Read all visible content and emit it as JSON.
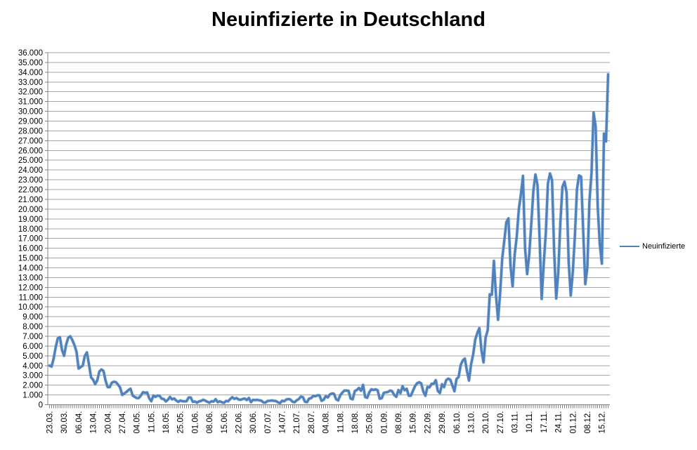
{
  "header": {
    "title": "Neuinfizierte in Deutschland"
  },
  "legend": {
    "label": "Neuinfizierte",
    "marker_color": "#4F81BD"
  },
  "chart_data": {
    "type": "line",
    "title": "Neuinfizierte in Deutschland",
    "xlabel": "",
    "ylabel": "",
    "ylim": [
      0,
      36000
    ],
    "y_tick_step": 1000,
    "y_tick_labels_top_to_bottom": [
      "36.000",
      "35.000",
      "34.000",
      "33.000",
      "32.000",
      "31.000",
      "30.000",
      "29.000",
      "28.000",
      "27.000",
      "26.000",
      "25.000",
      "24.000",
      "23.000",
      "22.000",
      "21.000",
      "20.000",
      "19.000",
      "18.000",
      "17.000",
      "16.000",
      "15.000",
      "14.000",
      "13.000",
      "12.000",
      "11.000",
      "10.000",
      "9.000",
      "8.000",
      "7.000",
      "6.000",
      "5.000",
      "4.000",
      "3.000",
      "2.000",
      "1.000",
      "0"
    ],
    "grid": "horizontal-on",
    "legend_position": "right",
    "x_tick_every": 7,
    "x_tick_labels": [
      "23.03.",
      "30.03.",
      "06.04.",
      "13.04.",
      "20.04.",
      "27.04.",
      "04.05.",
      "11.05.",
      "18.05.",
      "25.05.",
      "01.06.",
      "08.06.",
      "15.06.",
      "22.06.",
      "30.06.",
      "07.07.",
      "14.07.",
      "21.07.",
      "28.07.",
      "04.08.",
      "11.08.",
      "18.08.",
      "25.08.",
      "01.09.",
      "08.09.",
      "15.09.",
      "22.09.",
      "29.09.",
      "06.10.",
      "13.10.",
      "20.10.",
      "27.10.",
      "03.11.",
      "10.11.",
      "17.11.",
      "24.11.",
      "01.12.",
      "08.12.",
      "15.12."
    ],
    "series": [
      {
        "name": "Neuinfizierte",
        "color": "#4F81BD",
        "values": [
          4000,
          3900,
          4750,
          5900,
          6800,
          6900,
          5600,
          5000,
          6150,
          6850,
          7000,
          6600,
          6100,
          5400,
          3700,
          3850,
          4000,
          5000,
          5350,
          4100,
          2800,
          2550,
          2100,
          2500,
          3400,
          3600,
          3450,
          2450,
          1800,
          1800,
          2250,
          2350,
          2300,
          2050,
          1750,
          1000,
          1150,
          1300,
          1500,
          1639,
          950,
          800,
          680,
          690,
          950,
          1280,
          1210,
          1250,
          670,
          360,
          930,
          800,
          930,
          910,
          620,
          580,
          340,
          510,
          800,
          550,
          640,
          430,
          290,
          430,
          360,
          350,
          360,
          740,
          740,
          290,
          330,
          210,
          340,
          390,
          510,
          410,
          300,
          210,
          350,
          320,
          560,
          260,
          350,
          250,
          190,
          380,
          350,
          580,
          770,
          600,
          690,
          540,
          500,
          590,
          630,
          480,
          690,
          260,
          500,
          470,
          500,
          450,
          420,
          240,
          220,
          390,
          400,
          440,
          400,
          380,
          250,
          160,
          410,
          350,
          530,
          580,
          530,
          310,
          250,
          450,
          570,
          820,
          780,
          310,
          260,
          630,
          680,
          900,
          870,
          960,
          955,
          400,
          510,
          880,
          740,
          1050,
          1150,
          1120,
          560,
          440,
          970,
          1230,
          1450,
          1450,
          1420,
          630,
          560,
          1390,
          1510,
          1710,
          1430,
          2030,
          780,
          710,
          1280,
          1580,
          1510,
          1570,
          1480,
          610,
          670,
          1220,
          1260,
          1310,
          1450,
          1380,
          990,
          810,
          1500,
          1180,
          1890,
          1480,
          1630,
          920,
          930,
          1410,
          1900,
          2190,
          2300,
          2180,
          1350,
          920,
          1820,
          1770,
          2140,
          2150,
          2510,
          1410,
          1190,
          2090,
          1800,
          2500,
          2670,
          2560,
          1960,
          1380,
          2640,
          2830,
          4060,
          4520,
          4720,
          3480,
          2470,
          4120,
          5130,
          6640,
          7330,
          7830,
          5590,
          4330,
          6870,
          7600,
          11290,
          11240,
          14710,
          11180,
          8690,
          11410,
          14960,
          16770,
          18680,
          19060,
          14180,
          12100,
          15350,
          17210,
          19990,
          21510,
          23400,
          16020,
          13360,
          15330,
          18490,
          21870,
          23540,
          22460,
          16950,
          10820,
          14420,
          17560,
          22610,
          23650,
          22960,
          15740,
          10860,
          13550,
          18630,
          22270,
          22810,
          21700,
          14610,
          11170,
          13600,
          17270,
          22050,
          23450,
          23320,
          17770,
          12330,
          14050,
          20820,
          23680,
          29880,
          28440,
          20200,
          16360,
          14430,
          27730,
          26920,
          33780
        ]
      }
    ],
    "colors": {
      "line": "#4F81BD",
      "line_halo": "#8DB0D8",
      "grid": "#A6A6A6",
      "axis": "#808080",
      "text": "#000000",
      "background": "#FFFFFF"
    }
  }
}
